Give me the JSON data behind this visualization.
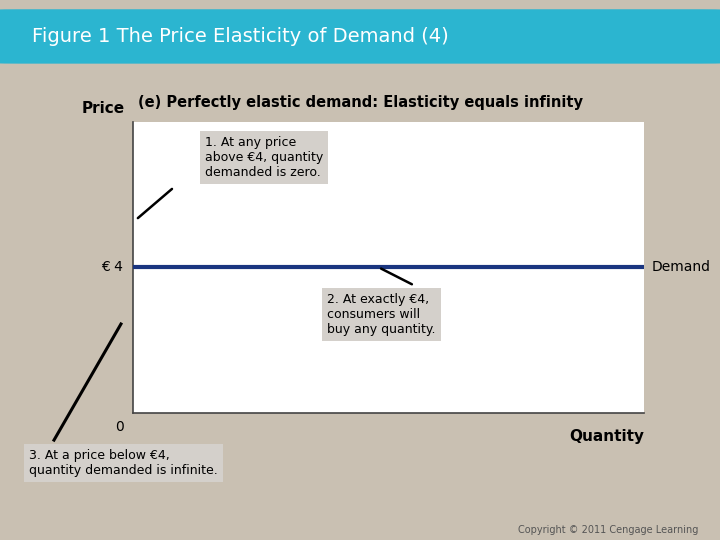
{
  "title": "Figure 1 The Price Elasticity of Demand (4)",
  "subtitle": "(e) Perfectly elastic demand: Elasticity equals infinity",
  "title_bg_color": "#2bb5d0",
  "title_text_color": "#ffffff",
  "background_color": "#c9c0b2",
  "chart_bg_color": "#ffffff",
  "demand_line_color": "#1a3580",
  "demand_line_y": 4,
  "ylabel": "Price",
  "xlabel": "Quantity",
  "price_tick_label": "€ 4",
  "origin_label": "0",
  "demand_label": "Demand",
  "annotation1": "1. At any price\nabove €4, quantity\ndemanded is zero.",
  "annotation2": "2. At exactly €4,\nconsumers will\nbuy any quantity.",
  "annotation3": "3. At a price below €4,\nquantity demanded is infinite.",
  "annot_bg_color": "#d4d0cb",
  "copyright": "Copyright © 2011 Cengage Learning",
  "xlim": [
    0,
    10
  ],
  "ylim": [
    0,
    8
  ]
}
